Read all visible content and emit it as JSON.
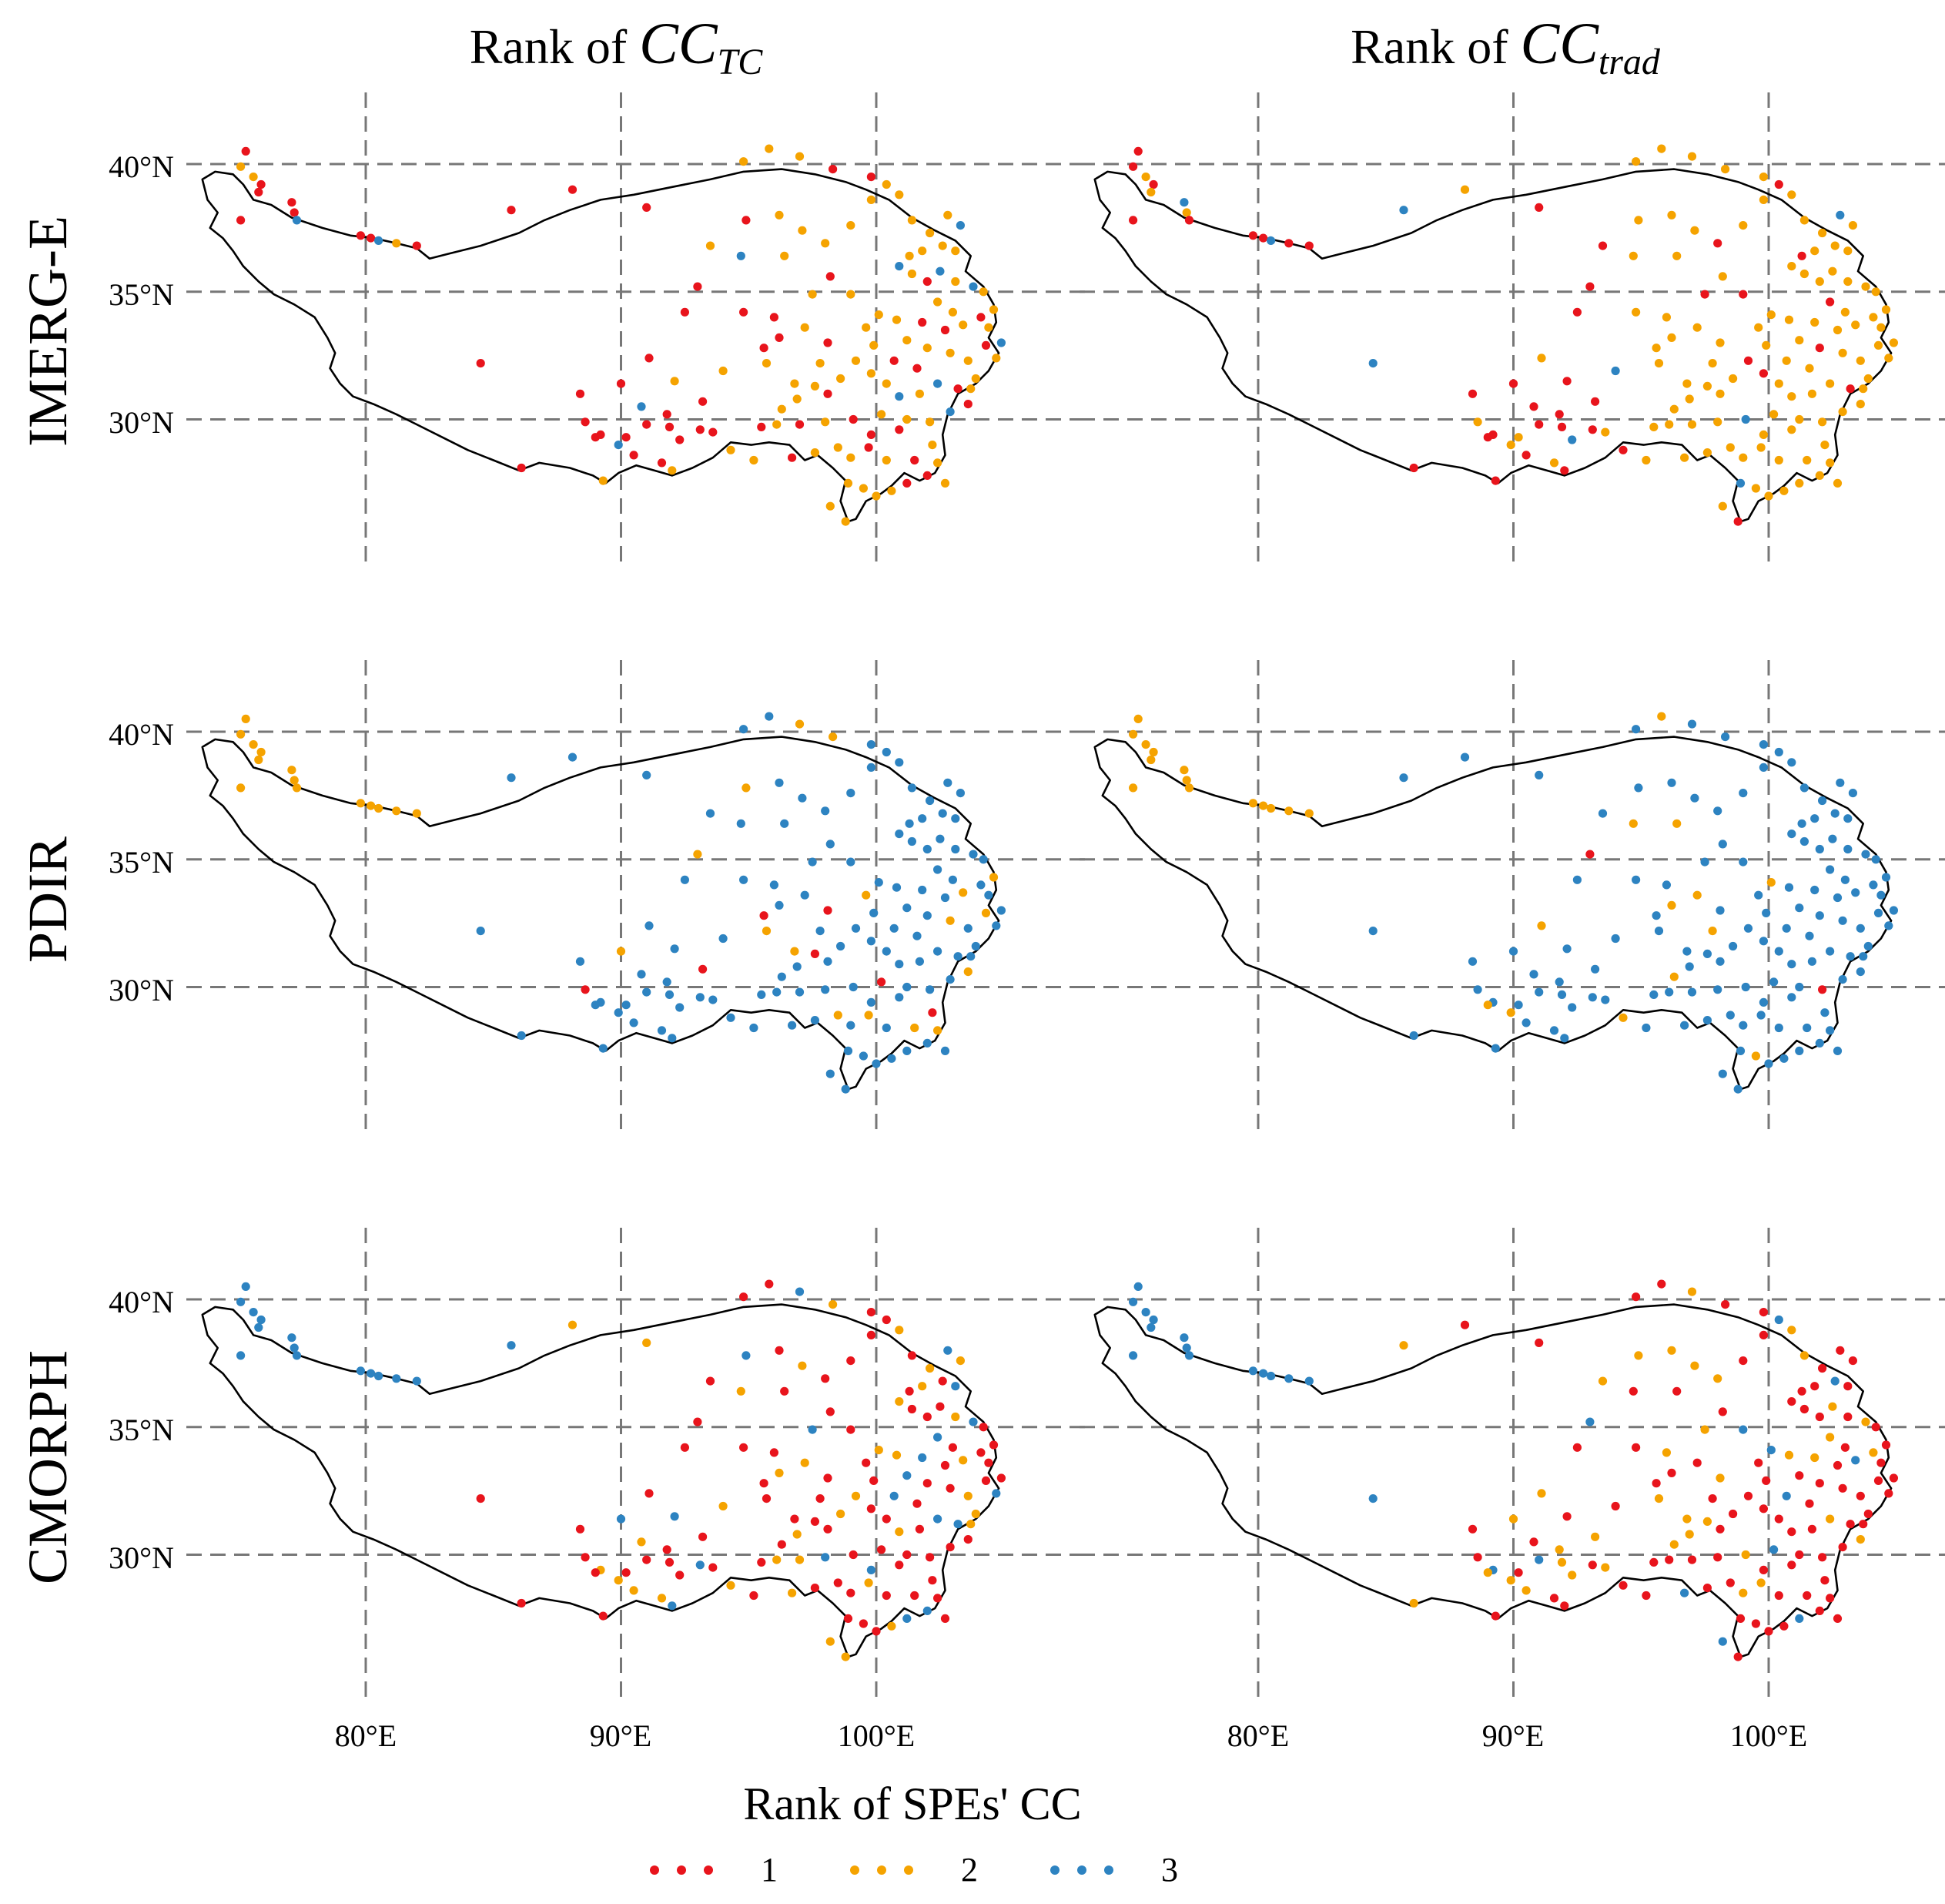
{
  "figure": {
    "column_titles": [
      {
        "prefix": "Rank of ",
        "var": "CC",
        "sub": "TC"
      },
      {
        "prefix": "Rank of ",
        "var": "CC",
        "sub": "trad"
      }
    ],
    "row_labels": [
      "IMERG-E",
      "PDIR",
      "CMORPH"
    ],
    "lon_ticks": [
      "80°E",
      "90°E",
      "100°E"
    ],
    "lat_ticks": [
      "40°N",
      "35°N",
      "30°N"
    ],
    "legend": {
      "title": "Rank of SPEs' CC",
      "items": [
        {
          "label": "1",
          "color": "#e8141c"
        },
        {
          "label": "2",
          "color": "#f5a300"
        },
        {
          "label": "3",
          "color": "#2d83c1"
        }
      ]
    }
  },
  "chart_data": {
    "type": "map-scatter",
    "region": "Tibetan Plateau",
    "lon_range": [
      73,
      106
    ],
    "lat_range": [
      25.5,
      42.5
    ],
    "grid_lon": [
      80,
      90,
      100
    ],
    "grid_lat": [
      30,
      35,
      40
    ],
    "stations": [
      [
        75.3,
        40.5
      ],
      [
        75.1,
        39.9
      ],
      [
        75.6,
        39.5
      ],
      [
        75.9,
        39.2
      ],
      [
        75.8,
        38.9
      ],
      [
        75.1,
        37.8
      ],
      [
        77.1,
        38.5
      ],
      [
        77.2,
        38.1
      ],
      [
        77.3,
        37.8
      ],
      [
        79.8,
        37.2
      ],
      [
        80.2,
        37.1
      ],
      [
        80.5,
        37.0
      ],
      [
        81.2,
        36.9
      ],
      [
        82.0,
        36.8
      ],
      [
        88.1,
        39.0
      ],
      [
        85.7,
        38.2
      ],
      [
        91.0,
        38.3
      ],
      [
        94.8,
        40.1
      ],
      [
        95.8,
        40.6
      ],
      [
        97.0,
        40.3
      ],
      [
        98.3,
        39.8
      ],
      [
        99.8,
        39.5
      ],
      [
        100.4,
        39.2
      ],
      [
        96.2,
        38.0
      ],
      [
        94.9,
        37.8
      ],
      [
        93.5,
        36.8
      ],
      [
        94.7,
        36.4
      ],
      [
        96.4,
        36.4
      ],
      [
        97.1,
        37.4
      ],
      [
        98.0,
        36.9
      ],
      [
        99.0,
        37.6
      ],
      [
        99.8,
        38.6
      ],
      [
        100.9,
        38.8
      ],
      [
        101.4,
        37.8
      ],
      [
        102.1,
        37.3
      ],
      [
        102.8,
        38.0
      ],
      [
        103.3,
        37.6
      ],
      [
        103.1,
        36.6
      ],
      [
        102.6,
        36.8
      ],
      [
        101.8,
        36.6
      ],
      [
        101.3,
        36.4
      ],
      [
        100.9,
        36.0
      ],
      [
        101.4,
        35.7
      ],
      [
        102.0,
        35.4
      ],
      [
        102.5,
        35.8
      ],
      [
        103.1,
        35.4
      ],
      [
        103.8,
        35.2
      ],
      [
        104.2,
        35.0
      ],
      [
        104.6,
        34.3
      ],
      [
        104.1,
        34.0
      ],
      [
        103.4,
        33.7
      ],
      [
        102.7,
        33.5
      ],
      [
        101.8,
        33.8
      ],
      [
        100.8,
        33.9
      ],
      [
        100.1,
        34.1
      ],
      [
        101.2,
        33.1
      ],
      [
        102.0,
        32.8
      ],
      [
        102.9,
        32.6
      ],
      [
        103.6,
        32.3
      ],
      [
        104.3,
        32.9
      ],
      [
        104.9,
        33.0
      ],
      [
        104.7,
        32.4
      ],
      [
        103.9,
        31.6
      ],
      [
        103.2,
        31.2
      ],
      [
        102.4,
        31.4
      ],
      [
        101.7,
        31.0
      ],
      [
        100.9,
        30.9
      ],
      [
        100.4,
        31.4
      ],
      [
        99.8,
        31.8
      ],
      [
        99.9,
        32.9
      ],
      [
        99.2,
        32.3
      ],
      [
        98.6,
        31.6
      ],
      [
        98.1,
        31.0
      ],
      [
        97.6,
        31.3
      ],
      [
        96.9,
        30.8
      ],
      [
        96.3,
        30.4
      ],
      [
        95.5,
        29.7
      ],
      [
        96.1,
        29.8
      ],
      [
        97.0,
        29.8
      ],
      [
        98.0,
        29.9
      ],
      [
        99.1,
        30.0
      ],
      [
        100.2,
        30.2
      ],
      [
        101.2,
        30.0
      ],
      [
        102.1,
        29.9
      ],
      [
        102.9,
        30.3
      ],
      [
        103.6,
        30.6
      ],
      [
        102.2,
        29.0
      ],
      [
        101.5,
        28.4
      ],
      [
        102.0,
        27.8
      ],
      [
        102.4,
        28.3
      ],
      [
        101.2,
        27.5
      ],
      [
        100.6,
        27.2
      ],
      [
        100.0,
        27.0
      ],
      [
        99.5,
        27.3
      ],
      [
        98.9,
        27.5
      ],
      [
        99.0,
        28.5
      ],
      [
        98.5,
        28.9
      ],
      [
        99.7,
        28.9
      ],
      [
        100.4,
        28.4
      ],
      [
        98.2,
        26.6
      ],
      [
        98.8,
        26.0
      ],
      [
        97.6,
        28.7
      ],
      [
        96.7,
        28.5
      ],
      [
        95.2,
        28.4
      ],
      [
        94.3,
        28.8
      ],
      [
        93.6,
        29.5
      ],
      [
        92.3,
        29.2
      ],
      [
        92.0,
        28.0
      ],
      [
        91.6,
        28.3
      ],
      [
        90.5,
        28.6
      ],
      [
        89.9,
        29.0
      ],
      [
        89.2,
        29.4
      ],
      [
        88.6,
        29.9
      ],
      [
        91.0,
        29.8
      ],
      [
        91.9,
        29.7
      ],
      [
        90.2,
        29.3
      ],
      [
        89.0,
        29.3
      ],
      [
        89.3,
        27.6
      ],
      [
        86.1,
        28.1
      ],
      [
        88.4,
        31.0
      ],
      [
        90.0,
        31.4
      ],
      [
        91.1,
        32.4
      ],
      [
        92.1,
        31.5
      ],
      [
        93.2,
        30.7
      ],
      [
        94.0,
        31.9
      ],
      [
        95.6,
        32.8
      ],
      [
        96.2,
        33.2
      ],
      [
        96.0,
        34.0
      ],
      [
        97.2,
        33.6
      ],
      [
        98.1,
        33.0
      ],
      [
        97.8,
        32.2
      ],
      [
        97.5,
        34.9
      ],
      [
        98.2,
        35.6
      ],
      [
        99.0,
        34.9
      ],
      [
        92.5,
        34.2
      ],
      [
        93.0,
        35.2
      ],
      [
        84.5,
        32.2
      ],
      [
        90.8,
        30.5
      ],
      [
        91.8,
        30.2
      ],
      [
        93.1,
        29.6
      ],
      [
        95.7,
        32.2
      ],
      [
        96.8,
        31.4
      ],
      [
        94.8,
        34.2
      ],
      [
        99.6,
        33.6
      ],
      [
        100.7,
        32.3
      ],
      [
        101.6,
        32.0
      ],
      [
        102.4,
        34.6
      ],
      [
        103.0,
        34.2
      ],
      [
        104.4,
        33.6
      ],
      [
        103.7,
        31.2
      ],
      [
        100.9,
        29.6
      ],
      [
        99.8,
        29.4
      ],
      [
        102.7,
        27.5
      ]
    ],
    "panels": [
      {
        "row": "IMERG-E",
        "column": "CC_TC",
        "default_rank": 2,
        "rank1_lon_max": 93.5,
        "rank3_frac": 0.07,
        "rank1_frac_east": 0.25
      },
      {
        "row": "IMERG-E",
        "column": "CC_trad",
        "default_rank": 2,
        "rank1_lon_max": 94.5,
        "rank3_frac": 0.03,
        "rank1_frac_east": 0.15
      },
      {
        "row": "PDIR",
        "column": "CC_TC",
        "default_rank": 3,
        "west_rank": 2,
        "west_lon_max": 83.5,
        "rank2_frac_east": 0.12,
        "rank1_frac_east": 0.07
      },
      {
        "row": "PDIR",
        "column": "CC_trad",
        "default_rank": 3,
        "west_rank": 2,
        "west_lon_max": 83.5,
        "rank2_frac_east": 0.13,
        "rank1_frac_east": 0.01
      },
      {
        "row": "CMORPH",
        "column": "CC_TC",
        "default_rank": 1,
        "west_rank": 3,
        "west_lon_max": 83.5,
        "rank2_frac_east": 0.25,
        "rank3_frac_east": 0.12
      },
      {
        "row": "CMORPH",
        "column": "CC_trad",
        "default_rank": 1,
        "west_rank": 3,
        "west_lon_max": 83.5,
        "rank2_frac_east": 0.3,
        "rank3_frac_east": 0.08
      }
    ],
    "boundary": [
      [
        73.6,
        39.4
      ],
      [
        74.1,
        39.7
      ],
      [
        74.8,
        39.6
      ],
      [
        75.2,
        39.2
      ],
      [
        75.6,
        38.6
      ],
      [
        76.3,
        38.4
      ],
      [
        77.1,
        37.9
      ],
      [
        78.3,
        37.5
      ],
      [
        79.4,
        37.2
      ],
      [
        80.3,
        37.1
      ],
      [
        81.2,
        36.9
      ],
      [
        82.0,
        36.7
      ],
      [
        82.5,
        36.3
      ],
      [
        83.3,
        36.5
      ],
      [
        84.5,
        36.8
      ],
      [
        86.0,
        37.3
      ],
      [
        87.0,
        37.8
      ],
      [
        88.0,
        38.2
      ],
      [
        89.2,
        38.6
      ],
      [
        90.5,
        38.8
      ],
      [
        92.0,
        39.1
      ],
      [
        93.5,
        39.4
      ],
      [
        94.8,
        39.7
      ],
      [
        96.3,
        39.8
      ],
      [
        97.6,
        39.6
      ],
      [
        98.8,
        39.3
      ],
      [
        99.6,
        39.0
      ],
      [
        100.5,
        38.6
      ],
      [
        101.4,
        37.9
      ],
      [
        102.3,
        37.4
      ],
      [
        103.1,
        37.0
      ],
      [
        103.7,
        36.4
      ],
      [
        103.5,
        35.8
      ],
      [
        104.2,
        35.2
      ],
      [
        104.6,
        34.5
      ],
      [
        104.7,
        33.8
      ],
      [
        104.4,
        33.2
      ],
      [
        104.8,
        32.6
      ],
      [
        104.4,
        31.9
      ],
      [
        103.9,
        31.4
      ],
      [
        103.2,
        31.0
      ],
      [
        102.8,
        30.2
      ],
      [
        102.6,
        29.4
      ],
      [
        102.7,
        28.6
      ],
      [
        102.3,
        27.9
      ],
      [
        101.7,
        27.6
      ],
      [
        101.1,
        27.9
      ],
      [
        100.6,
        27.4
      ],
      [
        100.2,
        27.1
      ],
      [
        99.6,
        26.8
      ],
      [
        99.2,
        26.1
      ],
      [
        98.9,
        26.0
      ],
      [
        98.6,
        26.8
      ],
      [
        98.8,
        27.6
      ],
      [
        98.3,
        28.1
      ],
      [
        97.7,
        28.6
      ],
      [
        97.2,
        28.4
      ],
      [
        96.6,
        29.0
      ],
      [
        95.8,
        29.1
      ],
      [
        95.1,
        29.0
      ],
      [
        94.3,
        29.1
      ],
      [
        93.6,
        28.5
      ],
      [
        92.8,
        28.1
      ],
      [
        92.0,
        27.8
      ],
      [
        91.3,
        28.0
      ],
      [
        90.6,
        28.2
      ],
      [
        89.9,
        27.9
      ],
      [
        89.4,
        27.5
      ],
      [
        88.9,
        27.8
      ],
      [
        88.0,
        28.1
      ],
      [
        86.8,
        28.3
      ],
      [
        86.0,
        28.0
      ],
      [
        85.0,
        28.4
      ],
      [
        84.0,
        28.8
      ],
      [
        83.0,
        29.3
      ],
      [
        82.0,
        29.8
      ],
      [
        81.2,
        30.2
      ],
      [
        80.3,
        30.6
      ],
      [
        79.5,
        30.9
      ],
      [
        79.0,
        31.4
      ],
      [
        78.6,
        32.0
      ],
      [
        78.8,
        32.6
      ],
      [
        78.5,
        33.2
      ],
      [
        78.0,
        34.0
      ],
      [
        77.2,
        34.5
      ],
      [
        76.4,
        34.9
      ],
      [
        75.8,
        35.4
      ],
      [
        75.2,
        36.0
      ],
      [
        74.8,
        36.6
      ],
      [
        74.4,
        37.1
      ],
      [
        73.9,
        37.5
      ],
      [
        74.2,
        38.1
      ],
      [
        73.8,
        38.6
      ],
      [
        73.6,
        39.4
      ]
    ]
  }
}
